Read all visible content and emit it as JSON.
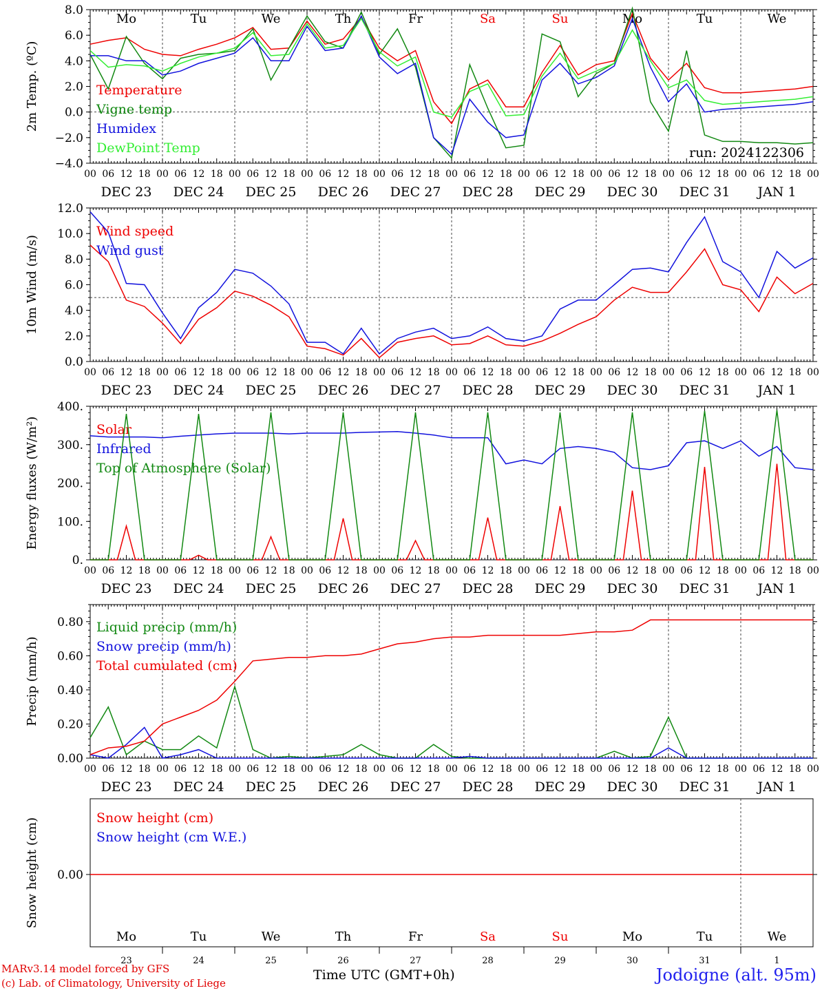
{
  "colors": {
    "red": "#ee0000",
    "darkgreen": "#118811",
    "blue": "#1111dd",
    "lime": "#33ee33",
    "weekend": "#ee0000",
    "weekday": "#000000"
  },
  "days": {
    "names": [
      "Mo",
      "Tu",
      "We",
      "Th",
      "Fr",
      "Sa",
      "Su",
      "Mo",
      "Tu",
      "We"
    ],
    "weekend": [
      false,
      false,
      false,
      false,
      false,
      true,
      true,
      false,
      false,
      false
    ],
    "dates": [
      "DEC 23",
      "DEC 24",
      "DEC 25",
      "DEC 26",
      "DEC 27",
      "DEC 28",
      "DEC 29",
      "DEC 30",
      "DEC 31",
      "JAN 1"
    ],
    "day_numbers": [
      "23",
      "24",
      "25",
      "26",
      "27",
      "28",
      "29",
      "30",
      "31",
      "1"
    ],
    "hour_labels": [
      "00",
      "06",
      "12",
      "18"
    ],
    "last_label": "00"
  },
  "footer": {
    "model": "MARv3.14 model forced by GFS",
    "lab": "(c) Lab. of Climatology, University of Liege",
    "time_label": "Time UTC (GMT+0h)",
    "station": "Jodoigne (alt. 95m)"
  },
  "chart_data": [
    {
      "type": "line",
      "ylabel": "2m Temp. (ºC)",
      "ylim": [
        -4,
        8
      ],
      "yticks": [
        "8.0",
        "6.0",
        "4.0",
        "2.0",
        "0.0",
        "−2.0",
        "−4.0"
      ],
      "yticks_values": [
        8,
        6,
        4,
        2,
        0,
        -2,
        -4
      ],
      "reference_line": 0,
      "annotation": "run: 2024122306",
      "x_hours": [
        0,
        6,
        12,
        18,
        24,
        30,
        36,
        42,
        48,
        54,
        60,
        66,
        72,
        78,
        84,
        90,
        96,
        102,
        108,
        114,
        120,
        126,
        132,
        138,
        144,
        150,
        156,
        162,
        168,
        174,
        180,
        186,
        192,
        198,
        204,
        210,
        216,
        222,
        228,
        234,
        240
      ],
      "series": [
        {
          "name": "Temperature",
          "color": "#ee0000",
          "values": [
            5.3,
            5.6,
            5.8,
            4.9,
            4.5,
            4.4,
            4.9,
            5.3,
            5.8,
            6.6,
            4.9,
            5.0,
            7.1,
            5.3,
            5.7,
            7.4,
            5.0,
            4.0,
            4.8,
            0.8,
            -0.9,
            1.8,
            2.5,
            0.4,
            0.4,
            3.1,
            5.2,
            2.9,
            3.7,
            4.0,
            7.7,
            4.2,
            2.5,
            3.8,
            1.9,
            1.5,
            1.5,
            1.6,
            1.7,
            1.8,
            2.0
          ]
        },
        {
          "name": "Vigne temp",
          "color": "#118811",
          "values": [
            4.5,
            1.8,
            5.9,
            3.8,
            2.6,
            4.2,
            4.5,
            4.6,
            4.8,
            6.5,
            2.5,
            5.0,
            7.5,
            5.5,
            5.0,
            7.8,
            4.5,
            6.5,
            3.5,
            -2.0,
            -3.6,
            3.7,
            0.3,
            -2.8,
            -2.6,
            6.1,
            5.5,
            1.2,
            3.0,
            3.8,
            8.1,
            0.8,
            -1.5,
            4.8,
            -1.8,
            -2.3,
            -2.3,
            -2.4,
            -2.4,
            -2.5,
            -2.4
          ]
        },
        {
          "name": "Humidex",
          "color": "#1111dd",
          "values": [
            4.4,
            4.4,
            4.0,
            4.0,
            2.9,
            3.2,
            3.8,
            4.2,
            4.6,
            5.8,
            4.0,
            4.0,
            6.7,
            4.8,
            5.0,
            7.5,
            4.3,
            3.0,
            3.8,
            -2.0,
            -3.3,
            1.0,
            -0.8,
            -2.0,
            -1.8,
            2.5,
            3.8,
            2.2,
            2.7,
            3.6,
            7.3,
            3.5,
            0.8,
            2.2,
            0.0,
            0.2,
            0.3,
            0.4,
            0.5,
            0.6,
            0.8
          ]
        },
        {
          "name": "DewPoint Temp",
          "color": "#33ee33",
          "values": [
            4.8,
            3.5,
            3.7,
            3.6,
            3.2,
            3.8,
            4.3,
            4.6,
            5.0,
            6.2,
            4.4,
            4.5,
            6.9,
            5.0,
            5.2,
            7.3,
            4.7,
            3.6,
            4.3,
            0.0,
            -0.4,
            1.6,
            2.2,
            -0.3,
            -0.2,
            2.8,
            4.6,
            2.6,
            3.2,
            3.8,
            6.4,
            4.0,
            1.9,
            2.5,
            0.9,
            0.6,
            0.7,
            0.8,
            0.9,
            1.0,
            1.2
          ]
        }
      ]
    },
    {
      "type": "line",
      "ylabel": "10m Wind (m/s)",
      "ylim": [
        0,
        12
      ],
      "yticks": [
        "12.0",
        "10.0",
        "8.0",
        "6.0",
        "4.0",
        "2.0",
        "0.0"
      ],
      "yticks_values": [
        12,
        10,
        8,
        6,
        4,
        2,
        0
      ],
      "reference_line": 5,
      "x_hours": [
        0,
        6,
        12,
        18,
        24,
        30,
        36,
        42,
        48,
        54,
        60,
        66,
        72,
        78,
        84,
        90,
        96,
        102,
        108,
        114,
        120,
        126,
        132,
        138,
        144,
        150,
        156,
        162,
        168,
        174,
        180,
        186,
        192,
        198,
        204,
        210,
        216,
        222,
        228,
        234,
        240
      ],
      "series": [
        {
          "name": "Wind speed",
          "color": "#ee0000",
          "values": [
            9.1,
            7.8,
            4.8,
            4.3,
            3.0,
            1.4,
            3.3,
            4.2,
            5.5,
            5.1,
            4.4,
            3.5,
            1.2,
            1.0,
            0.5,
            1.8,
            0.3,
            1.5,
            1.8,
            2.0,
            1.3,
            1.4,
            2.0,
            1.3,
            1.2,
            1.6,
            2.2,
            2.9,
            3.5,
            4.8,
            5.8,
            5.4,
            5.4,
            7.0,
            8.8,
            6.0,
            5.6,
            3.9,
            6.6,
            5.3,
            6.1
          ]
        },
        {
          "name": "Wind gust",
          "color": "#1111dd",
          "values": [
            11.7,
            10.1,
            6.1,
            6.0,
            3.8,
            1.8,
            4.2,
            5.4,
            7.2,
            6.9,
            5.9,
            4.5,
            1.5,
            1.5,
            0.6,
            2.6,
            0.6,
            1.8,
            2.3,
            2.6,
            1.8,
            2.0,
            2.7,
            1.8,
            1.6,
            2.0,
            4.1,
            4.8,
            4.8,
            6.0,
            7.2,
            7.3,
            7.0,
            9.3,
            11.3,
            7.8,
            7.0,
            5.0,
            8.6,
            7.3,
            8.1
          ]
        }
      ]
    },
    {
      "type": "line",
      "ylabel": "Energy fluxes (W/m²)",
      "ylim": [
        0,
        400
      ],
      "yticks": [
        "400.",
        "300.",
        "200.",
        "100.",
        "0."
      ],
      "yticks_values": [
        400,
        300,
        200,
        100,
        0
      ],
      "x_hours": [
        0,
        6,
        12,
        18,
        24,
        30,
        36,
        42,
        48,
        54,
        60,
        66,
        72,
        78,
        84,
        90,
        96,
        102,
        108,
        114,
        120,
        126,
        132,
        138,
        144,
        150,
        156,
        162,
        168,
        174,
        180,
        186,
        192,
        198,
        204,
        210,
        216,
        222,
        228,
        234,
        240
      ],
      "series": [
        {
          "name": "Solar",
          "color": "#ee0000",
          "peaks": [
            88,
            12,
            60,
            108,
            50,
            110,
            140,
            180,
            242,
            250
          ]
        },
        {
          "name": "Infrared",
          "color": "#1111dd",
          "values": [
            323,
            320,
            320,
            320,
            318,
            322,
            325,
            328,
            330,
            330,
            330,
            328,
            330,
            330,
            330,
            332,
            333,
            334,
            330,
            325,
            318,
            318,
            318,
            250,
            260,
            250,
            290,
            295,
            290,
            280,
            240,
            235,
            245,
            305,
            310,
            290,
            310,
            270,
            295,
            240,
            235
          ]
        },
        {
          "name": "Top of Atmosphere (Solar)",
          "color": "#118811",
          "peaks": [
            380,
            380,
            384,
            384,
            384,
            384,
            384,
            384,
            388,
            390
          ]
        }
      ]
    },
    {
      "type": "line",
      "ylabel": "Precip (mm/h)",
      "ylim": [
        0,
        0.9
      ],
      "yticks": [
        "0.80",
        "0.60",
        "0.40",
        "0.20",
        "0.00"
      ],
      "yticks_values": [
        0.8,
        0.6,
        0.4,
        0.2,
        0.0
      ],
      "x_hours": [
        0,
        6,
        12,
        18,
        24,
        30,
        36,
        42,
        48,
        54,
        60,
        66,
        72,
        78,
        84,
        90,
        96,
        102,
        108,
        114,
        120,
        126,
        132,
        138,
        144,
        150,
        156,
        162,
        168,
        174,
        180,
        186,
        192,
        198,
        204,
        210,
        216,
        222,
        228,
        234,
        240
      ],
      "series": [
        {
          "name": "Liquid precip (mm/h)",
          "color": "#118811",
          "values": [
            0.12,
            0.3,
            0.02,
            0.1,
            0.05,
            0.05,
            0.13,
            0.06,
            0.42,
            0.05,
            0.0,
            0.01,
            0.0,
            0.01,
            0.02,
            0.08,
            0.02,
            0.0,
            0.0,
            0.08,
            0.01,
            0.0,
            0.0,
            0.0,
            0.0,
            0.0,
            0.0,
            0.0,
            0.0,
            0.04,
            0.0,
            0.01,
            0.24,
            0.0,
            0.0,
            0.0,
            0.0,
            0.0,
            0.0,
            0.0,
            0.0
          ]
        },
        {
          "name": "Snow precip (mm/h)",
          "color": "#1111dd",
          "values": [
            0.02,
            0.0,
            0.08,
            0.18,
            0.0,
            0.02,
            0.05,
            0.0,
            0.0,
            0.0,
            0.0,
            0.0,
            0.0,
            0.0,
            0.0,
            0.0,
            0.0,
            0.0,
            0.0,
            0.0,
            0.0,
            0.01,
            0.0,
            0.0,
            0.0,
            0.0,
            0.0,
            0.0,
            0.0,
            0.0,
            0.0,
            0.0,
            0.06,
            0.0,
            0.0,
            0.0,
            0.0,
            0.0,
            0.0,
            0.0,
            0.0
          ]
        },
        {
          "name": "Total cumulated (cm)",
          "color": "#ee0000",
          "values": [
            0.02,
            0.06,
            0.07,
            0.1,
            0.2,
            0.24,
            0.28,
            0.34,
            0.45,
            0.57,
            0.58,
            0.59,
            0.59,
            0.6,
            0.6,
            0.61,
            0.64,
            0.67,
            0.68,
            0.7,
            0.71,
            0.71,
            0.72,
            0.72,
            0.72,
            0.72,
            0.72,
            0.73,
            0.74,
            0.74,
            0.75,
            0.81,
            0.81,
            0.81,
            0.81,
            0.81,
            0.81,
            0.81,
            0.81,
            0.81,
            0.81
          ]
        }
      ]
    },
    {
      "type": "line",
      "ylabel": "Snow height (cm)",
      "yticks": [
        "0.00"
      ],
      "yticks_values": [
        0
      ],
      "series": [
        {
          "name": "Snow height (cm)",
          "color": "#ee0000",
          "values": [
            0,
            0
          ]
        },
        {
          "name": "Snow height (cm W.E.)",
          "color": "#1111dd"
        }
      ]
    }
  ]
}
